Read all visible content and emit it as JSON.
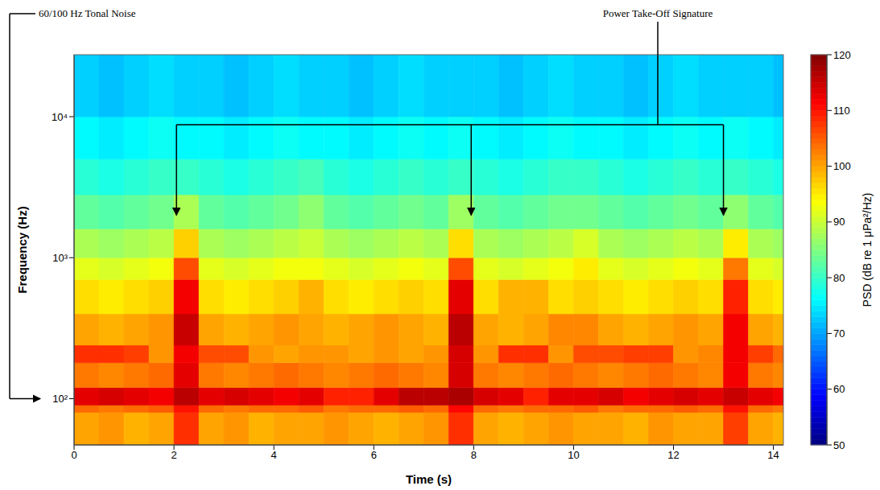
{
  "chart_data": {
    "type": "heatmap",
    "xlabel": "Time (s)",
    "ylabel": "Frequency (Hz)",
    "log": "y",
    "xlim": [
      0,
      14.2
    ],
    "xticks": [
      0,
      2,
      4,
      6,
      8,
      10,
      12,
      14
    ],
    "ylim": [
      47,
      27500
    ],
    "yticks": [
      {
        "value": 100,
        "label": "10²"
      },
      {
        "value": 1000,
        "label": "10³"
      },
      {
        "value": 10000,
        "label": "10⁴"
      }
    ],
    "x_bins": [
      0,
      0.5,
      1,
      1.5,
      2,
      2.5,
      3,
      3.5,
      4,
      4.5,
      5,
      5.5,
      6,
      6.5,
      7,
      7.5,
      8,
      8.5,
      9,
      9.5,
      10,
      10.5,
      11,
      11.5,
      12,
      12.5,
      13,
      13.5,
      14,
      14.2
    ],
    "y_bins": [
      47,
      80,
      90,
      120,
      180,
      240,
      400,
      700,
      1000,
      1600,
      2800,
      5000,
      10000,
      27500
    ],
    "cells": [
      [
        100,
        101,
        99,
        100,
        108,
        100,
        101,
        99,
        100,
        100,
        101,
        100,
        99,
        100,
        101,
        108,
        100,
        99,
        100,
        101,
        100,
        100,
        99,
        101,
        100,
        100,
        107,
        100,
        99
      ],
      [
        104,
        103,
        104,
        105,
        110,
        104,
        103,
        104,
        104,
        105,
        103,
        104,
        104,
        105,
        104,
        111,
        104,
        103,
        104,
        104,
        105,
        103,
        104,
        104,
        105,
        104,
        110,
        104,
        103
      ],
      [
        113,
        114,
        113,
        112,
        116,
        113,
        114,
        113,
        112,
        113,
        109,
        109,
        113,
        116,
        116,
        117,
        114,
        113,
        109,
        113,
        113,
        114,
        112,
        113,
        114,
        113,
        115,
        113,
        112
      ],
      [
        103,
        102,
        103,
        104,
        113,
        103,
        102,
        103,
        104,
        103,
        102,
        103,
        104,
        103,
        102,
        114,
        103,
        102,
        103,
        104,
        103,
        102,
        103,
        104,
        103,
        102,
        112,
        103,
        102
      ],
      [
        108,
        108,
        107,
        101,
        112,
        106,
        106,
        101,
        100,
        101,
        101,
        100,
        101,
        100,
        101,
        114,
        101,
        108,
        108,
        101,
        106,
        106,
        107,
        107,
        101,
        102,
        112,
        107,
        104
      ],
      [
        100,
        99,
        100,
        101,
        115,
        100,
        99,
        100,
        101,
        100,
        99,
        100,
        101,
        100,
        99,
        116,
        100,
        99,
        100,
        102,
        102,
        100,
        99,
        100,
        101,
        100,
        112,
        100,
        99
      ],
      [
        96,
        95,
        96,
        97,
        112,
        96,
        95,
        96,
        97,
        99,
        96,
        95,
        96,
        97,
        96,
        113,
        96,
        99,
        99,
        96,
        97,
        96,
        95,
        96,
        97,
        96,
        109,
        96,
        95
      ],
      [
        92,
        91,
        92,
        93,
        106,
        92,
        91,
        92,
        93,
        93,
        92,
        91,
        92,
        93,
        92,
        106,
        92,
        91,
        92,
        93,
        95,
        92,
        91,
        92,
        93,
        92,
        103,
        92,
        91
      ],
      [
        88,
        87,
        88,
        89,
        97,
        88,
        87,
        88,
        89,
        90,
        88,
        87,
        88,
        89,
        88,
        96,
        88,
        87,
        88,
        89,
        91,
        88,
        87,
        88,
        89,
        88,
        95,
        88,
        87
      ],
      [
        83,
        82,
        83,
        84,
        88,
        83,
        82,
        83,
        84,
        86,
        83,
        82,
        83,
        84,
        83,
        87,
        83,
        82,
        83,
        84,
        84,
        83,
        82,
        83,
        84,
        83,
        86,
        83,
        82
      ],
      [
        79,
        78,
        79,
        80,
        80,
        79,
        78,
        79,
        80,
        81,
        79,
        78,
        79,
        80,
        79,
        80,
        79,
        78,
        79,
        80,
        80,
        79,
        78,
        79,
        80,
        79,
        80,
        79,
        78
      ],
      [
        76,
        75,
        76,
        77,
        76,
        76,
        75,
        76,
        77,
        76,
        76,
        75,
        76,
        77,
        76,
        77,
        76,
        75,
        76,
        77,
        76,
        76,
        75,
        76,
        77,
        76,
        77,
        76,
        75
      ],
      [
        73,
        72,
        73,
        74,
        73,
        73,
        72,
        73,
        74,
        73,
        73,
        72,
        73,
        74,
        73,
        73,
        73,
        72,
        73,
        74,
        73,
        73,
        72,
        73,
        74,
        73,
        73,
        73,
        72
      ]
    ],
    "colorbar": {
      "label": "PSD (dB re 1 μPa²/Hz)",
      "range": [
        50,
        120
      ],
      "ticks": [
        50,
        60,
        70,
        80,
        90,
        100,
        110,
        120
      ]
    },
    "annotations": [
      {
        "text": "60/100 Hz Tonal Noise",
        "y": 100
      },
      {
        "text": "Power Take-Off Signature",
        "x": [
          2.05,
          7.95,
          13.0
        ],
        "y": 2000
      }
    ]
  }
}
